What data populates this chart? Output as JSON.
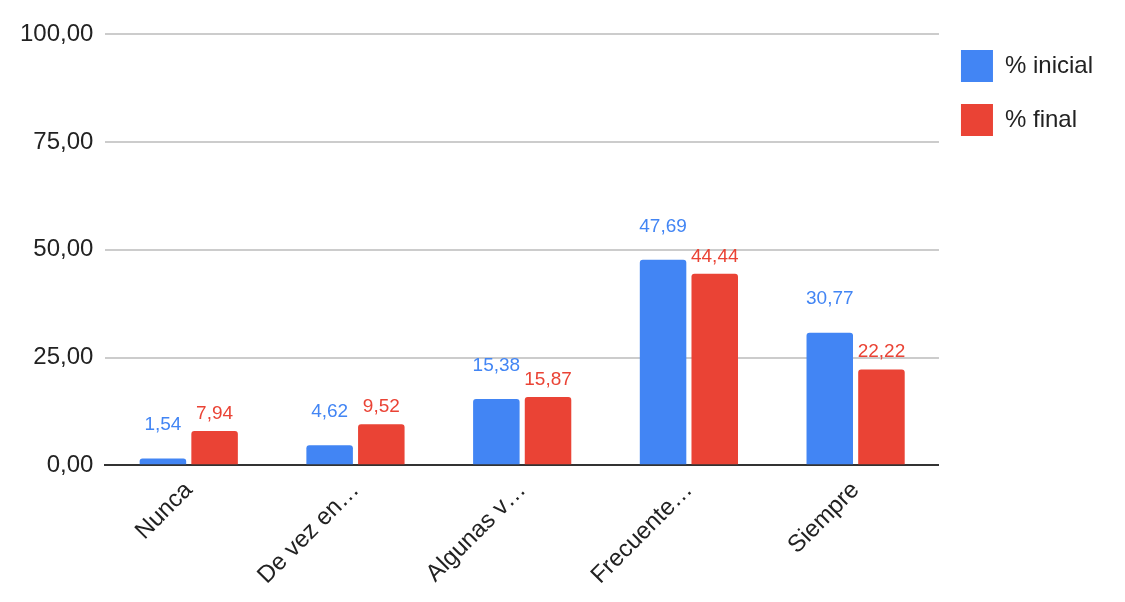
{
  "chart_data": {
    "type": "bar",
    "categories": [
      "Nunca",
      "De vez en…",
      "Algunas v…",
      "Frecuente…",
      "Siempre"
    ],
    "series": [
      {
        "name": "% inicial",
        "color": "#4285f4",
        "values": [
          1.54,
          4.62,
          15.38,
          47.69,
          30.77
        ],
        "value_labels": [
          "1,54",
          "4,62",
          "15,38",
          "47,69",
          "30,77"
        ]
      },
      {
        "name": "% final",
        "color": "#ea4335",
        "values": [
          7.94,
          9.52,
          15.87,
          44.44,
          22.22
        ],
        "value_labels": [
          "7,94",
          "9,52",
          "15,87",
          "44,44",
          "22,22"
        ]
      }
    ],
    "ylim": [
      0,
      100
    ],
    "yticks": [
      {
        "value": 0,
        "label": "0,00"
      },
      {
        "value": 25,
        "label": "25,00"
      },
      {
        "value": 50,
        "label": "50,00"
      },
      {
        "value": 75,
        "label": "75,00"
      },
      {
        "value": 100,
        "label": "100,00"
      }
    ],
    "grid": "y",
    "legend": "top right"
  }
}
